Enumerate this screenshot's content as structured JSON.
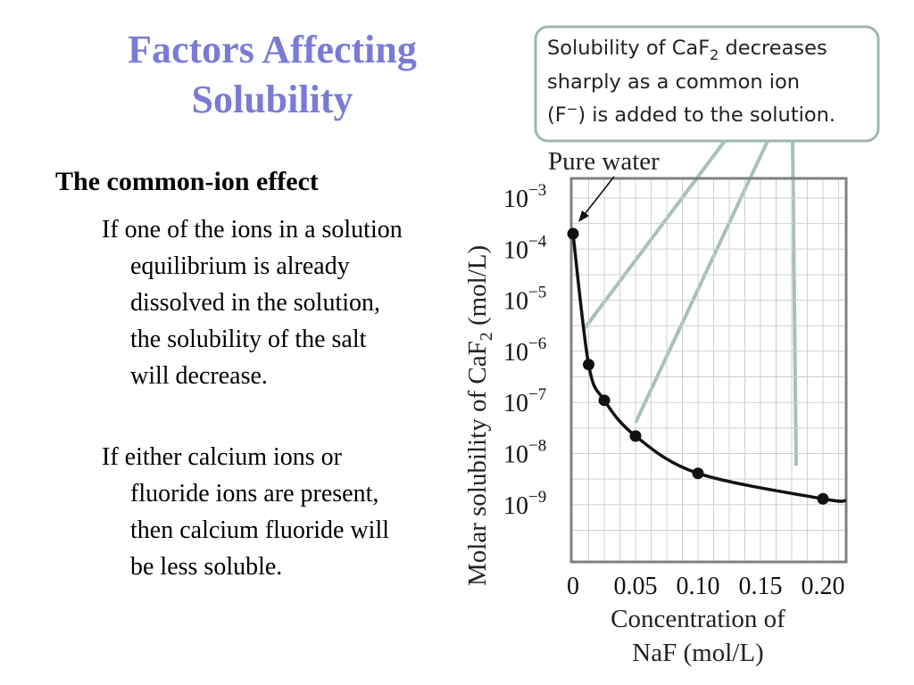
{
  "slide": {
    "title_line1": "Factors Affecting",
    "title_line2": "Solubility",
    "heading": "The common-ion effect",
    "bullets": [
      "If one of the ions in a solution equilibrium is already dissolved in the solution, the solubility of the salt will decrease.",
      "If either calcium ions or fluoride ions are present, then calcium fluoride will be less soluble."
    ]
  },
  "callout": {
    "line1": "Solubility of CaF",
    "line1_sub": "2",
    "line1_end": " decreases",
    "line2": "sharply as a common ion",
    "line3_start": "(F",
    "line3_sup": "−",
    "line3_end": ") is added to the solution."
  },
  "colors": {
    "title": "#7b7bd6",
    "callout_border": "#9fb5b0",
    "pointer_line": "#a9bfbb",
    "grid": "#cfcfcf",
    "frame": "#808080",
    "curve": "#111111"
  },
  "chart_data": {
    "type": "line",
    "title": "",
    "xlabel_line1": "Concentration of",
    "xlabel_line2": "NaF (mol/L)",
    "ylabel_main": "Molar solubility of CaF",
    "ylabel_sub": "2",
    "ylabel_end": " (mol/L)",
    "y_scale": "log",
    "xlim": [
      0,
      0.22
    ],
    "ylim_exponent": [
      -10,
      -3
    ],
    "grid": true,
    "x_ticks": [
      {
        "value": 0,
        "label": "0"
      },
      {
        "value": 0.05,
        "label": "0.05"
      },
      {
        "value": 0.1,
        "label": "0.10"
      },
      {
        "value": 0.15,
        "label": "0.15"
      },
      {
        "value": 0.2,
        "label": "0.20"
      }
    ],
    "y_ticks": [
      {
        "exp": -3,
        "base": "10",
        "sup": "−3"
      },
      {
        "exp": -4,
        "base": "10",
        "sup": "−4"
      },
      {
        "exp": -5,
        "base": "10",
        "sup": "−5"
      },
      {
        "exp": -6,
        "base": "10",
        "sup": "−6"
      },
      {
        "exp": -7,
        "base": "10",
        "sup": "−7"
      },
      {
        "exp": -8,
        "base": "10",
        "sup": "−8"
      },
      {
        "exp": -9,
        "base": "10",
        "sup": "−9"
      }
    ],
    "points": [
      {
        "x": 0,
        "y": 0.0002
      },
      {
        "x": 0.0125,
        "y": 5.5e-07
      },
      {
        "x": 0.025,
        "y": 1.1e-07
      },
      {
        "x": 0.05,
        "y": 2.2e-08
      },
      {
        "x": 0.1,
        "y": 4.1e-09
      },
      {
        "x": 0.2,
        "y": 1.3e-09
      }
    ],
    "annotation": "Pure water"
  }
}
